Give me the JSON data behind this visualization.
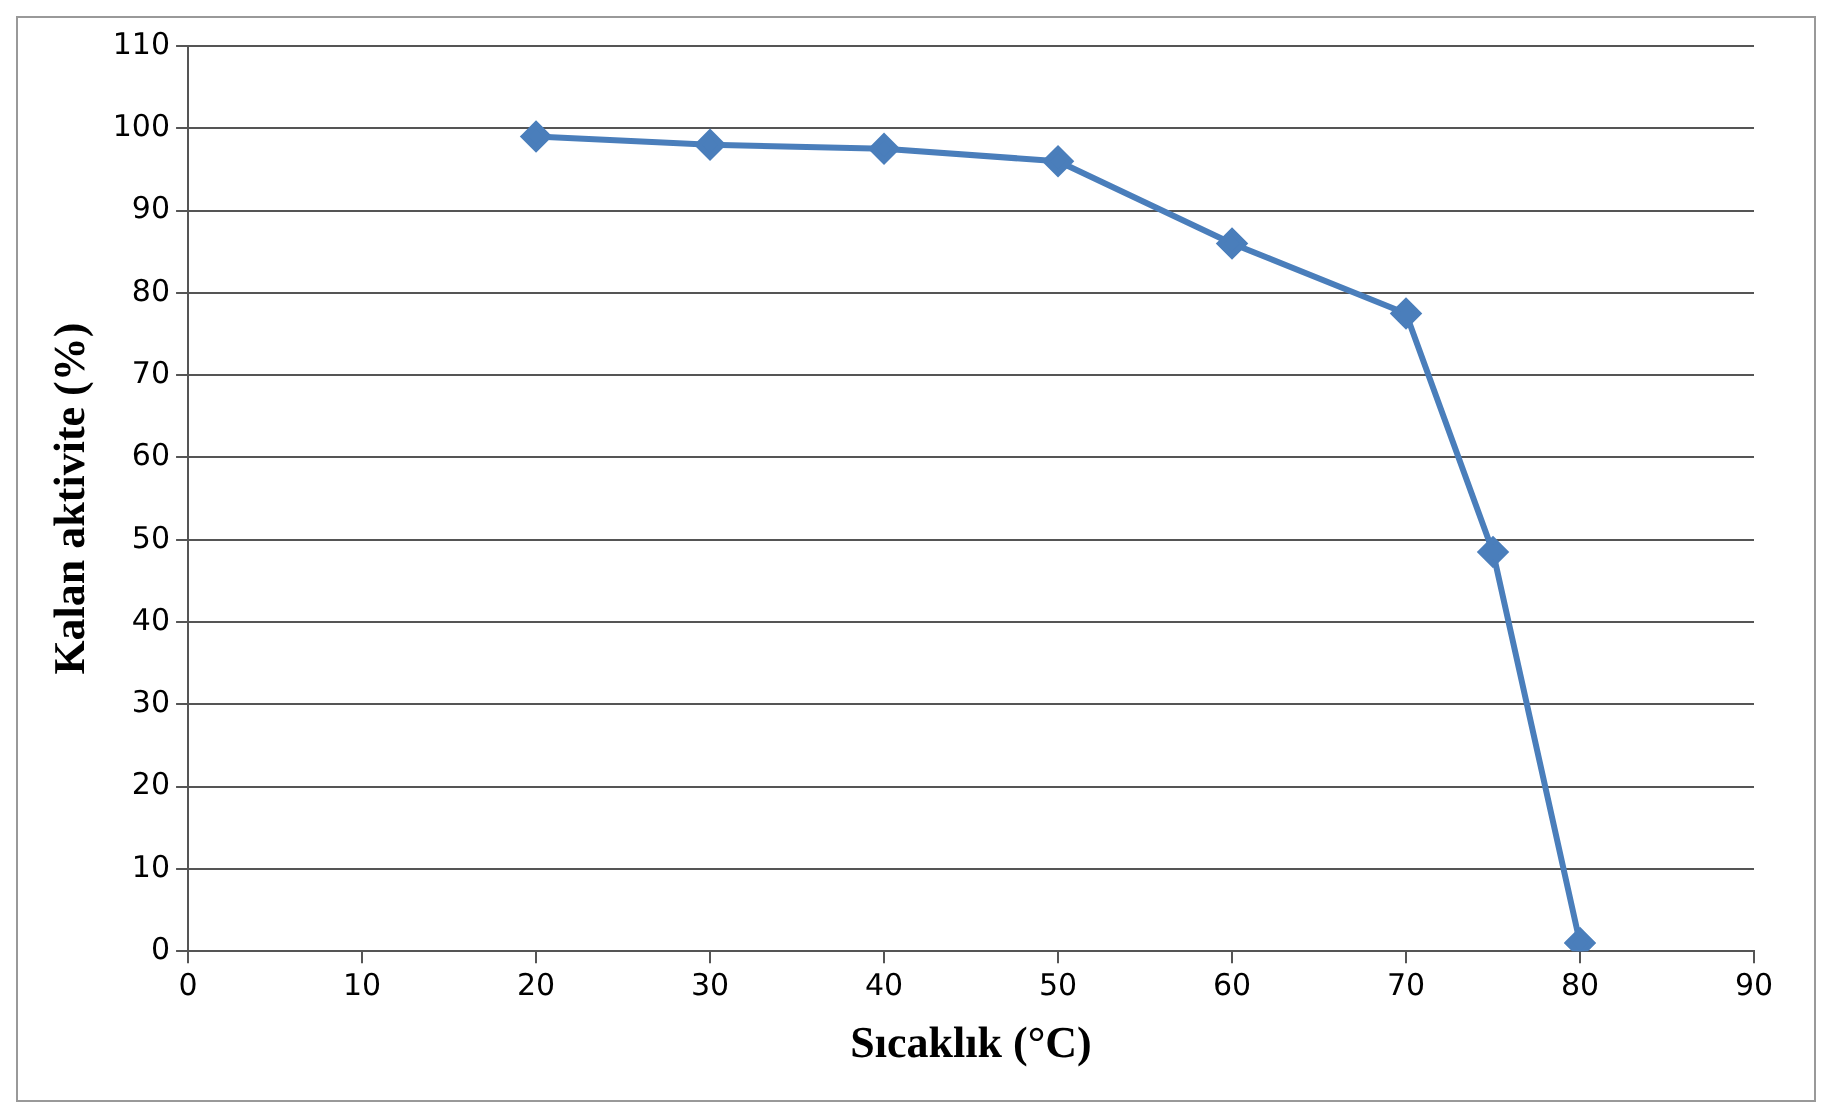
{
  "chart_data": {
    "type": "line",
    "xlabel": "Sıcaklık (°C)",
    "ylabel": "Kalan aktivite (%)",
    "x": [
      20,
      30,
      40,
      50,
      60,
      70,
      75,
      80
    ],
    "series": [
      {
        "color": "#4a7ebb",
        "values": [
          99,
          98,
          97.5,
          96,
          86,
          77.5,
          48.5,
          1
        ]
      }
    ],
    "xlim": [
      0,
      90
    ],
    "xticks": [
      0,
      10,
      20,
      30,
      40,
      50,
      60,
      70,
      80,
      90
    ],
    "ylim": [
      0,
      110
    ],
    "yticks": [
      0,
      10,
      20,
      30,
      40,
      50,
      60,
      70,
      80,
      90,
      100,
      110
    ],
    "grid": "y",
    "legend": false,
    "marker": "diamond",
    "line_style": "solid"
  }
}
